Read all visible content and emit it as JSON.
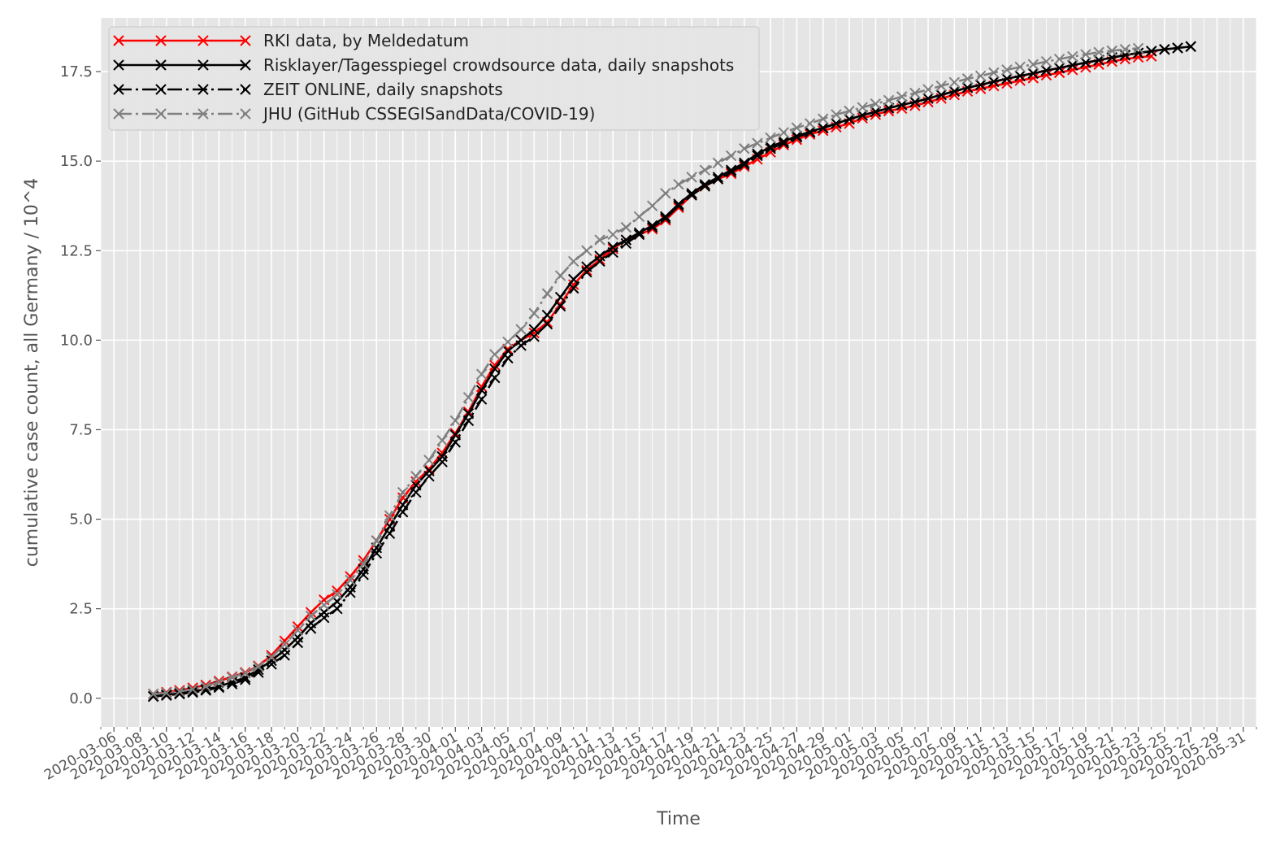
{
  "chart_data": {
    "type": "line",
    "title": "",
    "xlabel": "Time",
    "ylabel": "cumulative case count, all Germany / 10^4",
    "xlim": [
      "2020-03-05",
      "2020-06-01"
    ],
    "ylim": [
      -0.8,
      19.0
    ],
    "y_ticks": [
      0.0,
      2.5,
      5.0,
      7.5,
      10.0,
      12.5,
      15.0,
      17.5
    ],
    "x_ticks": [
      "2020-03-06",
      "2020-03-08",
      "2020-03-10",
      "2020-03-12",
      "2020-03-14",
      "2020-03-16",
      "2020-03-18",
      "2020-03-20",
      "2020-03-22",
      "2020-03-24",
      "2020-03-26",
      "2020-03-28",
      "2020-03-30",
      "2020-04-01",
      "2020-04-03",
      "2020-04-05",
      "2020-04-07",
      "2020-04-09",
      "2020-04-11",
      "2020-04-13",
      "2020-04-15",
      "2020-04-17",
      "2020-04-19",
      "2020-04-21",
      "2020-04-23",
      "2020-04-25",
      "2020-04-27",
      "2020-04-29",
      "2020-05-01",
      "2020-05-03",
      "2020-05-05",
      "2020-05-07",
      "2020-05-09",
      "2020-05-11",
      "2020-05-13",
      "2020-05-15",
      "2020-05-17",
      "2020-05-19",
      "2020-05-21",
      "2020-05-23",
      "2020-05-25",
      "2020-05-27",
      "2020-05-29",
      "2020-05-31"
    ],
    "grid": true,
    "legend_position": "top-left",
    "background_color": "#e5e5e5",
    "series": [
      {
        "name": "RKI data, by Meldedatum",
        "color": "#ff0000",
        "linestyle": "solid",
        "marker": "x",
        "x_start": "2020-03-09",
        "values": [
          0.12,
          0.17,
          0.22,
          0.29,
          0.37,
          0.48,
          0.6,
          0.72,
          0.9,
          1.2,
          1.6,
          2.0,
          2.4,
          2.75,
          3.0,
          3.4,
          3.85,
          4.4,
          5.0,
          5.6,
          6.05,
          6.4,
          6.85,
          7.4,
          8.0,
          8.7,
          9.3,
          9.75,
          10.0,
          10.2,
          10.5,
          11.0,
          11.55,
          11.95,
          12.25,
          12.55,
          12.8,
          12.95,
          13.1,
          13.35,
          13.7,
          14.05,
          14.3,
          14.5,
          14.65,
          14.85,
          15.05,
          15.25,
          15.45,
          15.6,
          15.75,
          15.85,
          15.95,
          16.05,
          16.2,
          16.3,
          16.4,
          16.47,
          16.55,
          16.65,
          16.75,
          16.85,
          16.95,
          17.02,
          17.1,
          17.17,
          17.25,
          17.32,
          17.4,
          17.47,
          17.55,
          17.62,
          17.7,
          17.78,
          17.85,
          17.9,
          17.93
        ]
      },
      {
        "name": "Risklayer/Tagesspiegel crowdsource data, daily snapshots",
        "color": "#000000",
        "linestyle": "solid",
        "marker": "x",
        "x_start": "2020-03-09",
        "values": [
          0.05,
          0.1,
          0.14,
          0.19,
          0.25,
          0.33,
          0.45,
          0.58,
          0.8,
          1.05,
          1.35,
          1.7,
          2.1,
          2.4,
          2.7,
          3.1,
          3.6,
          4.2,
          4.8,
          5.4,
          5.95,
          6.35,
          6.75,
          7.35,
          7.95,
          8.6,
          9.2,
          9.7,
          10.0,
          10.3,
          10.7,
          11.2,
          11.7,
          12.05,
          12.35,
          12.6,
          12.8,
          13.0,
          13.2,
          13.45,
          13.8,
          14.1,
          14.35,
          14.55,
          14.75,
          14.95,
          15.2,
          15.4,
          15.55,
          15.7,
          15.82,
          15.93,
          16.05,
          16.17,
          16.28,
          16.38,
          16.48,
          16.57,
          16.65,
          16.75,
          16.85,
          16.95,
          17.05,
          17.13,
          17.22,
          17.3,
          17.38,
          17.45,
          17.53,
          17.6,
          17.68,
          17.75,
          17.82,
          17.89,
          17.96,
          18.02,
          18.07,
          18.12,
          18.16,
          18.2
        ]
      },
      {
        "name": "ZEIT ONLINE, daily snapshots",
        "color": "#000000",
        "linestyle": "dashdot",
        "marker": "x",
        "x_start": "2020-03-09",
        "values": [
          0.05,
          0.08,
          0.12,
          0.16,
          0.22,
          0.3,
          0.4,
          0.52,
          0.72,
          0.95,
          1.2,
          1.55,
          1.95,
          2.25,
          2.5,
          2.95,
          3.45,
          4.05,
          4.6,
          5.2,
          5.75,
          6.2,
          6.6,
          7.15,
          7.75,
          8.35,
          8.95,
          9.5,
          9.85,
          10.1,
          10.45,
          10.95,
          11.45,
          11.9,
          12.2,
          12.45,
          12.7,
          12.95,
          13.15,
          13.4,
          13.75,
          14.05,
          14.3,
          14.5,
          14.7,
          14.9,
          15.15,
          15.35,
          15.5,
          15.67,
          15.8,
          15.92,
          16.05,
          16.17,
          16.28,
          16.38,
          16.48,
          16.57,
          16.65,
          16.75,
          16.85,
          16.95,
          17.05,
          17.13,
          17.22,
          17.3,
          17.38,
          17.45,
          17.53,
          17.6,
          17.68,
          17.75,
          17.82,
          17.89,
          17.96,
          18.02,
          18.07,
          18.12,
          18.16,
          18.2
        ]
      },
      {
        "name": "JHU (GitHub CSSEGISandData/COVID-19)",
        "color": "#808080",
        "linestyle": "dashdot",
        "marker": "x",
        "x_start": "2020-03-09",
        "values": [
          0.12,
          0.15,
          0.19,
          0.25,
          0.33,
          0.45,
          0.58,
          0.7,
          0.88,
          1.15,
          1.5,
          1.9,
          2.3,
          2.6,
          2.9,
          3.3,
          3.75,
          4.4,
          5.1,
          5.75,
          6.2,
          6.65,
          7.2,
          7.75,
          8.4,
          9.05,
          9.6,
          9.95,
          10.3,
          10.75,
          11.3,
          11.8,
          12.2,
          12.5,
          12.8,
          12.95,
          13.15,
          13.45,
          13.75,
          14.1,
          14.35,
          14.55,
          14.75,
          14.95,
          15.15,
          15.35,
          15.5,
          15.65,
          15.8,
          15.93,
          16.05,
          16.18,
          16.3,
          16.4,
          16.5,
          16.6,
          16.7,
          16.8,
          16.9,
          17.0,
          17.1,
          17.2,
          17.3,
          17.38,
          17.47,
          17.55,
          17.63,
          17.7,
          17.78,
          17.85,
          17.92,
          17.98,
          18.04,
          18.08,
          18.12,
          18.15
        ]
      }
    ]
  }
}
